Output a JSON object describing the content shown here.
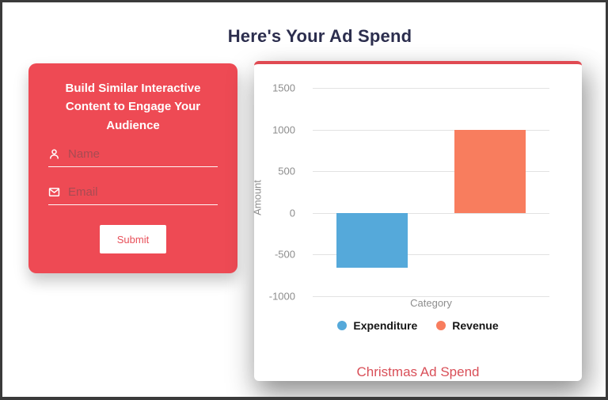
{
  "page": {
    "title": "Here's Your Ad Spend"
  },
  "form_card": {
    "heading": "Build Similar Interactive Content to Engage Your Audience",
    "fields": {
      "name": {
        "placeholder": "Name",
        "icon": "person-icon"
      },
      "email": {
        "placeholder": "Email",
        "icon": "envelope-icon"
      }
    },
    "submit_label": "Submit",
    "background_color": "#ee4a54"
  },
  "chart_card": {
    "footer_title": "Christmas Ad Spend",
    "accent_color": "#e04a52"
  },
  "chart_data": {
    "type": "bar",
    "categories": [
      "Category"
    ],
    "series": [
      {
        "name": "Expenditure",
        "values": [
          -660
        ],
        "color": "#55a9da"
      },
      {
        "name": "Revenue",
        "values": [
          1000
        ],
        "color": "#f87d5e"
      }
    ],
    "title": "Christmas Ad Spend",
    "xlabel": "Category",
    "ylabel": "Amount",
    "ylim": [
      -1000,
      1500
    ],
    "yticks": [
      1500,
      1000,
      500,
      0,
      -500,
      -1000
    ],
    "grid": true,
    "legend_position": "bottom"
  }
}
